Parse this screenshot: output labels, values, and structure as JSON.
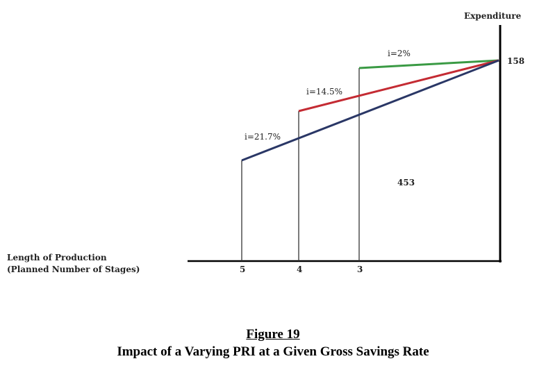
{
  "diagram": {
    "y_axis_label": "Expenditure",
    "x_axis_label_line1": "Length of Production",
    "x_axis_label_line2": "(Planned Number of Stages)",
    "end_value": "158",
    "area_value": "453",
    "stages": [
      {
        "label": "5"
      },
      {
        "label": "4"
      },
      {
        "label": "3"
      }
    ],
    "lines": [
      {
        "label": "i=2%",
        "color": "#3a9a44"
      },
      {
        "label": "i=14.5%",
        "color": "#c42b33"
      },
      {
        "label": "i=21.7%",
        "color": "#2a3766"
      }
    ]
  },
  "caption": {
    "figure_number": "Figure 19",
    "title": "Impact of a Varying PRI at a Given Gross Savings Rate"
  }
}
